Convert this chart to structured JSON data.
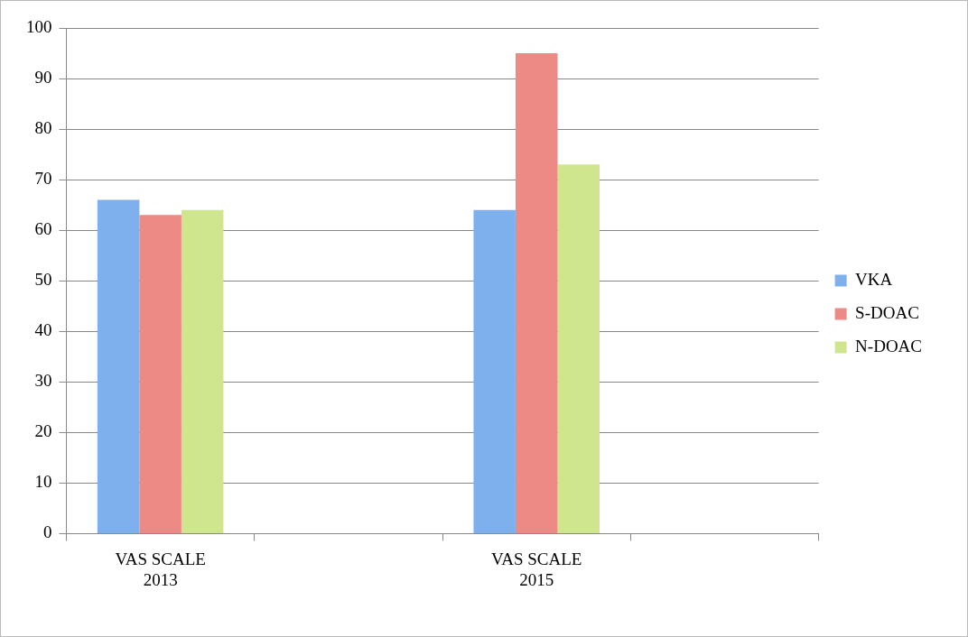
{
  "chart_data": {
    "type": "bar",
    "categories": [
      "VAS SCALE 2013",
      null,
      "VAS SCALE 2015",
      null
    ],
    "series": [
      {
        "name": "VKA",
        "color": "#7fb0ee",
        "values": [
          66,
          null,
          64,
          null
        ]
      },
      {
        "name": "S-DOAC",
        "color": "#ee8a85",
        "values": [
          63,
          null,
          95,
          null
        ]
      },
      {
        "name": "N-DOAC",
        "color": "#cfe68f",
        "values": [
          64,
          null,
          73,
          null
        ]
      }
    ],
    "ylim": [
      0,
      100
    ],
    "yticks": [
      0,
      10,
      20,
      30,
      40,
      50,
      60,
      70,
      80,
      90,
      100
    ],
    "grid": "y",
    "legend": "right"
  }
}
